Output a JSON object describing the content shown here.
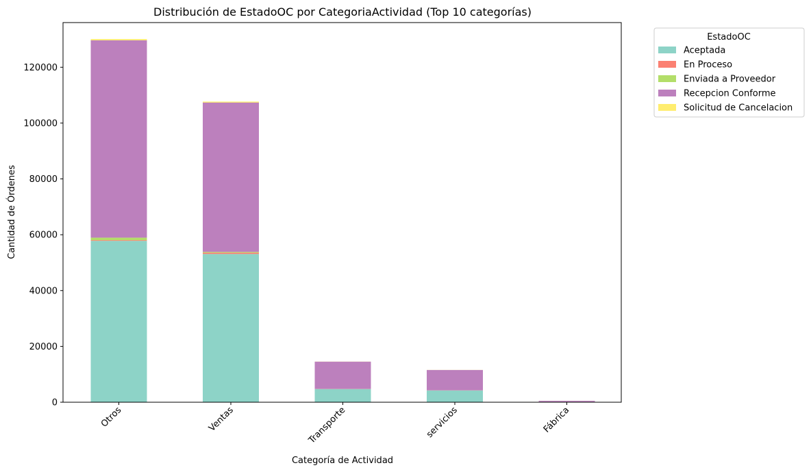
{
  "chart_data": {
    "type": "bar",
    "stacked": true,
    "title": "Distribución de EstadoOC por CategoriaActividad (Top 10 categorías)",
    "xlabel": "Categoría de Actividad",
    "ylabel": "Cantidad de Órdenes",
    "categories": [
      "Otros",
      "Ventas",
      "Transporte",
      "servicios",
      "Fábrica"
    ],
    "ylim": [
      0,
      136000
    ],
    "yticks": [
      0,
      20000,
      40000,
      60000,
      80000,
      100000,
      120000
    ],
    "ytick_labels": [
      "0",
      "20000",
      "40000",
      "60000",
      "80000",
      "100000",
      "120000"
    ],
    "grid": false,
    "legend": {
      "title": "EstadoOC",
      "placement": "outside upper right"
    },
    "series": [
      {
        "name": "Aceptada",
        "color": "#8dd3c7",
        "values": [
          57800,
          53100,
          4700,
          4200,
          150
        ]
      },
      {
        "name": "En Proceso",
        "color": "#fb8072",
        "values": [
          250,
          450,
          20,
          20,
          5
        ]
      },
      {
        "name": "Enviada a Proveedor",
        "color": "#b3de69",
        "values": [
          900,
          300,
          30,
          30,
          5
        ]
      },
      {
        "name": "Recepcion Conforme",
        "color": "#bc80bd",
        "values": [
          70700,
          53500,
          9800,
          7300,
          350
        ]
      },
      {
        "name": "Solicitud de Cancelacion",
        "color": "#ffed6f",
        "values": [
          450,
          350,
          30,
          30,
          5
        ]
      }
    ]
  }
}
